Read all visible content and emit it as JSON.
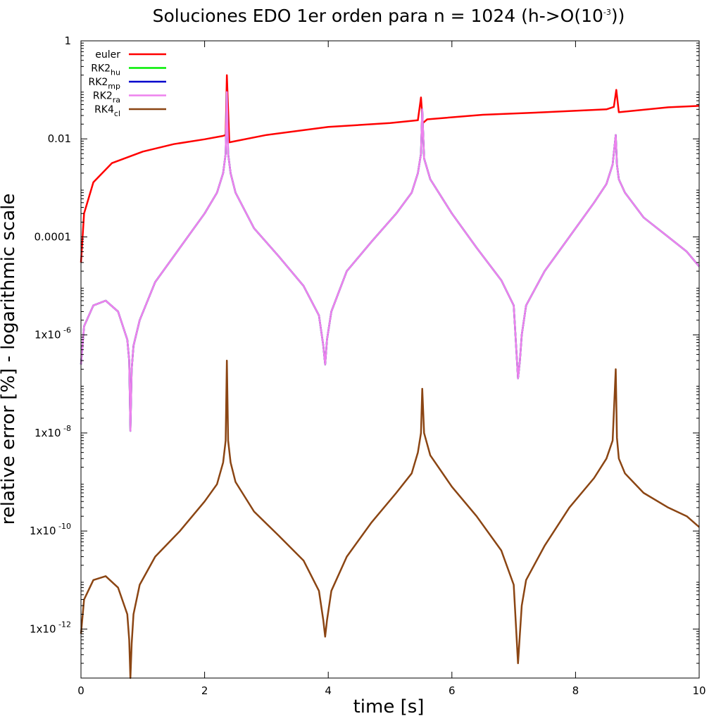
{
  "chart_data": {
    "type": "line",
    "title": {
      "main": "Soluciones EDO 1er orden para n = 1024 (h->O(10",
      "exponent": "-3",
      "close": "))"
    },
    "xlabel": "time [s]",
    "ylabel": "relative error [%] - logarithmic scale",
    "y_scale": "log",
    "xlim": [
      0,
      10
    ],
    "ylim": [
      1e-13,
      1
    ],
    "x_ticks": [
      {
        "value": 0,
        "label": "0"
      },
      {
        "value": 2,
        "label": "2"
      },
      {
        "value": 4,
        "label": "4"
      },
      {
        "value": 6,
        "label": "6"
      },
      {
        "value": 8,
        "label": "8"
      },
      {
        "value": 10,
        "label": "10"
      }
    ],
    "y_ticks": [
      {
        "value": 1,
        "base": "1",
        "exp": ""
      },
      {
        "value": 0.01,
        "base": "0.01",
        "exp": ""
      },
      {
        "value": 0.0001,
        "base": "0.0001",
        "exp": ""
      },
      {
        "value": 1e-06,
        "base": "1x10",
        "exp": "-6"
      },
      {
        "value": 1e-08,
        "base": "1x10",
        "exp": "-8"
      },
      {
        "value": 1e-10,
        "base": "1x10",
        "exp": "-10"
      },
      {
        "value": 1e-12,
        "base": "1x10",
        "exp": "-12"
      }
    ],
    "grid": false,
    "legend_position": "top-left",
    "series": [
      {
        "name": "euler",
        "name_base": "euler",
        "name_sub": "",
        "color": "#ff0000",
        "x": [
          0,
          0.05,
          0.2,
          0.5,
          1.0,
          1.5,
          2.0,
          2.3,
          2.34,
          2.36,
          2.4,
          3.0,
          4.0,
          5.0,
          5.45,
          5.5,
          5.53,
          5.6,
          6.5,
          7.5,
          8.5,
          8.62,
          8.66,
          8.7,
          9.5,
          10.0
        ],
        "y": [
          3e-05,
          0.0003,
          0.0013,
          0.0032,
          0.0055,
          0.0078,
          0.0098,
          0.0115,
          0.012,
          0.2,
          0.0085,
          0.012,
          0.0175,
          0.021,
          0.024,
          0.07,
          0.021,
          0.025,
          0.031,
          0.035,
          0.04,
          0.045,
          0.1,
          0.035,
          0.044,
          0.047
        ]
      },
      {
        "name": "RK2hu",
        "name_base": "RK2",
        "name_sub": "hu",
        "color": "#00ee00",
        "x": [
          0,
          0.05,
          0.2,
          0.4,
          0.6,
          0.75,
          0.78,
          0.8,
          0.82,
          0.85,
          0.95,
          1.2,
          1.6,
          2.0,
          2.2,
          2.3,
          2.34,
          2.36,
          2.38,
          2.42,
          2.5,
          2.8,
          3.2,
          3.6,
          3.85,
          3.92,
          3.95,
          3.98,
          4.05,
          4.3,
          4.7,
          5.1,
          5.35,
          5.45,
          5.5,
          5.52,
          5.55,
          5.65,
          6.0,
          6.4,
          6.8,
          7.0,
          7.07,
          7.1,
          7.13,
          7.2,
          7.5,
          7.9,
          8.3,
          8.5,
          8.6,
          8.65,
          8.67,
          8.7,
          8.8,
          9.1,
          9.5,
          9.8,
          10.0
        ],
        "y": [
          2.5e-07,
          1.5e-06,
          4e-06,
          5e-06,
          3e-06,
          8e-07,
          3e-07,
          1.1e-08,
          2e-07,
          6e-07,
          2e-06,
          1.2e-05,
          6e-05,
          0.0003,
          0.0008,
          0.002,
          0.005,
          0.09,
          0.005,
          0.002,
          0.0008,
          0.00015,
          4e-05,
          1e-05,
          2.5e-06,
          6e-07,
          2.5e-07,
          8e-07,
          3e-06,
          2e-05,
          8e-05,
          0.0003,
          0.0008,
          0.002,
          0.005,
          0.04,
          0.004,
          0.0015,
          0.0003,
          6e-05,
          1.3e-05,
          4e-06,
          1.3e-07,
          3e-07,
          1e-06,
          4e-06,
          2e-05,
          0.0001,
          0.0005,
          0.0012,
          0.003,
          0.012,
          0.003,
          0.0015,
          0.0008,
          0.00025,
          0.0001,
          5e-05,
          2.5e-05
        ]
      },
      {
        "name": "RK2mp",
        "name_base": "RK2",
        "name_sub": "mp",
        "color": "#0000cc",
        "x": [
          0,
          0.05,
          0.2,
          0.4,
          0.6,
          0.75,
          0.78,
          0.8,
          0.82,
          0.85,
          0.95,
          1.2,
          1.6,
          2.0,
          2.2,
          2.3,
          2.34,
          2.36,
          2.38,
          2.42,
          2.5,
          2.8,
          3.2,
          3.6,
          3.85,
          3.92,
          3.95,
          3.98,
          4.05,
          4.3,
          4.7,
          5.1,
          5.35,
          5.45,
          5.5,
          5.52,
          5.55,
          5.65,
          6.0,
          6.4,
          6.8,
          7.0,
          7.07,
          7.1,
          7.13,
          7.2,
          7.5,
          7.9,
          8.3,
          8.5,
          8.6,
          8.65,
          8.67,
          8.7,
          8.8,
          9.1,
          9.5,
          9.8,
          10.0
        ],
        "y": [
          2.5e-07,
          1.5e-06,
          4e-06,
          5e-06,
          3e-06,
          8e-07,
          3e-07,
          1.1e-08,
          2e-07,
          6e-07,
          2e-06,
          1.2e-05,
          6e-05,
          0.0003,
          0.0008,
          0.002,
          0.005,
          0.09,
          0.005,
          0.002,
          0.0008,
          0.00015,
          4e-05,
          1e-05,
          2.5e-06,
          6e-07,
          2.5e-07,
          8e-07,
          3e-06,
          2e-05,
          8e-05,
          0.0003,
          0.0008,
          0.002,
          0.005,
          0.04,
          0.004,
          0.0015,
          0.0003,
          6e-05,
          1.3e-05,
          4e-06,
          1.3e-07,
          3e-07,
          1e-06,
          4e-06,
          2e-05,
          0.0001,
          0.0005,
          0.0012,
          0.003,
          0.012,
          0.003,
          0.0015,
          0.0008,
          0.00025,
          0.0001,
          5e-05,
          2.5e-05
        ]
      },
      {
        "name": "RK2ra",
        "name_base": "RK2",
        "name_sub": "ra",
        "color": "#ee82ee",
        "x": [
          0,
          0.05,
          0.2,
          0.4,
          0.6,
          0.75,
          0.78,
          0.8,
          0.82,
          0.85,
          0.95,
          1.2,
          1.6,
          2.0,
          2.2,
          2.3,
          2.34,
          2.36,
          2.38,
          2.42,
          2.5,
          2.8,
          3.2,
          3.6,
          3.85,
          3.92,
          3.95,
          3.98,
          4.05,
          4.3,
          4.7,
          5.1,
          5.35,
          5.45,
          5.5,
          5.52,
          5.55,
          5.65,
          6.0,
          6.4,
          6.8,
          7.0,
          7.07,
          7.1,
          7.13,
          7.2,
          7.5,
          7.9,
          8.3,
          8.5,
          8.6,
          8.65,
          8.67,
          8.7,
          8.8,
          9.1,
          9.5,
          9.8,
          10.0
        ],
        "y": [
          2.5e-07,
          1.5e-06,
          4e-06,
          5e-06,
          3e-06,
          8e-07,
          3e-07,
          1.1e-08,
          2e-07,
          6e-07,
          2e-06,
          1.2e-05,
          6e-05,
          0.0003,
          0.0008,
          0.002,
          0.005,
          0.09,
          0.005,
          0.002,
          0.0008,
          0.00015,
          4e-05,
          1e-05,
          2.5e-06,
          6e-07,
          2.5e-07,
          8e-07,
          3e-06,
          2e-05,
          8e-05,
          0.0003,
          0.0008,
          0.002,
          0.005,
          0.04,
          0.004,
          0.0015,
          0.0003,
          6e-05,
          1.3e-05,
          4e-06,
          1.3e-07,
          3e-07,
          1e-06,
          4e-06,
          2e-05,
          0.0001,
          0.0005,
          0.0012,
          0.003,
          0.012,
          0.003,
          0.0015,
          0.0008,
          0.00025,
          0.0001,
          5e-05,
          2.5e-05
        ]
      },
      {
        "name": "RK4cl",
        "name_base": "RK4",
        "name_sub": "cl",
        "color": "#8b4513",
        "x": [
          0,
          0.05,
          0.2,
          0.4,
          0.6,
          0.75,
          0.78,
          0.8,
          0.82,
          0.85,
          0.95,
          1.2,
          1.6,
          2.0,
          2.2,
          2.3,
          2.34,
          2.36,
          2.38,
          2.42,
          2.5,
          2.8,
          3.2,
          3.6,
          3.85,
          3.92,
          3.95,
          3.98,
          4.05,
          4.3,
          4.7,
          5.1,
          5.35,
          5.45,
          5.5,
          5.52,
          5.55,
          5.65,
          6.0,
          6.4,
          6.8,
          7.0,
          7.07,
          7.1,
          7.13,
          7.2,
          7.5,
          7.9,
          8.3,
          8.5,
          8.6,
          8.65,
          8.67,
          8.7,
          8.8,
          9.1,
          9.5,
          9.8,
          10.0
        ],
        "y": [
          8e-13,
          4e-12,
          1e-11,
          1.2e-11,
          7e-12,
          2e-12,
          6e-13,
          1e-13,
          5e-13,
          2e-12,
          8e-12,
          3e-11,
          1e-10,
          4e-10,
          9e-10,
          2.5e-09,
          7e-09,
          3e-07,
          7e-09,
          2.5e-09,
          1e-09,
          2.5e-10,
          8e-11,
          2.5e-11,
          6e-12,
          1.5e-12,
          7e-13,
          1.5e-12,
          6e-12,
          3e-11,
          1.5e-10,
          6e-10,
          1.5e-09,
          4e-09,
          1e-08,
          8e-08,
          1e-08,
          3.5e-09,
          8e-10,
          2e-10,
          4e-11,
          8e-12,
          2e-13,
          8e-13,
          3e-12,
          1e-11,
          5e-11,
          3e-10,
          1.2e-09,
          3e-09,
          7e-09,
          2e-07,
          8e-09,
          3e-09,
          1.5e-09,
          6e-10,
          3e-10,
          2e-10,
          1.2e-10
        ]
      }
    ]
  }
}
